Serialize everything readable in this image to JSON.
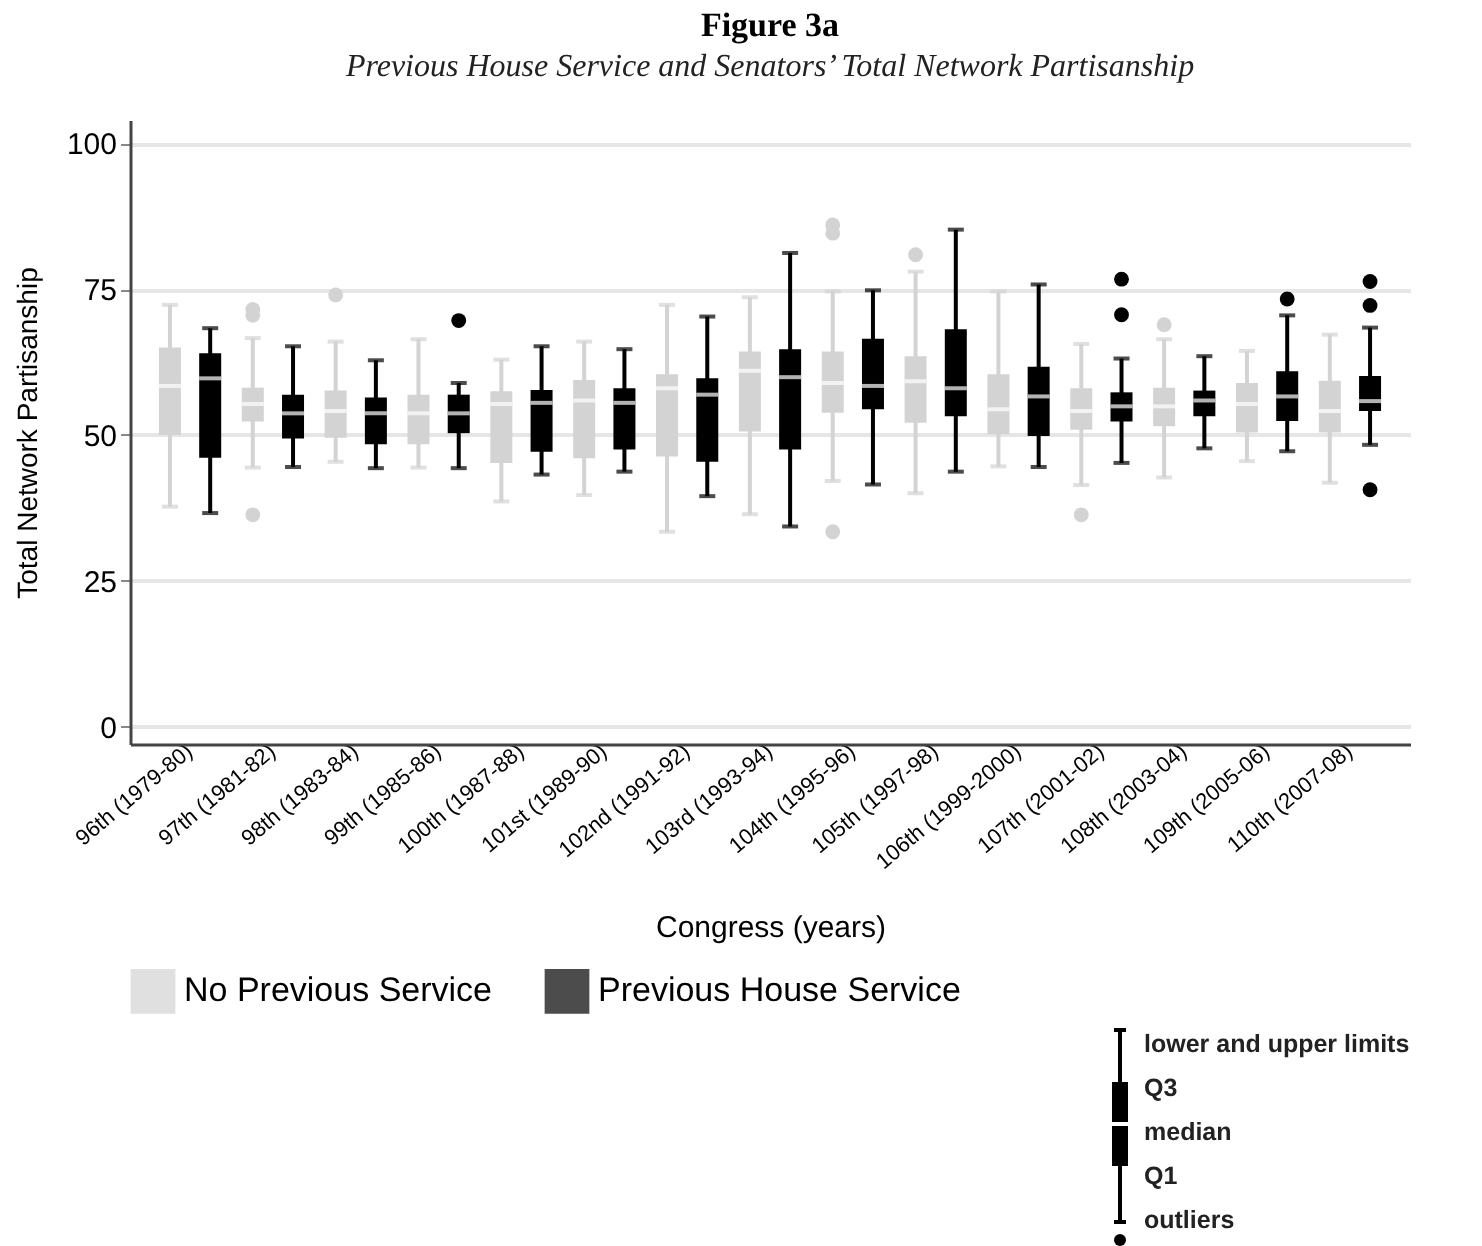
{
  "chart_data": {
    "type": "box",
    "title": "Figure 3a",
    "subtitle": "Previous House Service and Senators’ Total Network Partisanship",
    "xlabel": "Congress (years)",
    "ylabel": "Total Network Partisanship",
    "categories": [
      "96th (1979-80)",
      "97th (1981-82)",
      "98th (1983-84)",
      "99th (1985-86)",
      "100th (1987-88)",
      "101st (1989-90)",
      "102nd (1991-92)",
      "103rd (1993-94)",
      "104th (1995-96)",
      "105th (1997-98)",
      "106th (1999-2000)",
      "107th (2001-02)",
      "108th (2003-04)",
      "109th (2005-06)",
      "110th (2007-08)"
    ],
    "ylim": [
      -3,
      104
    ],
    "yticks": [
      0,
      25,
      50,
      75,
      100
    ],
    "grid": "y",
    "legend": "bottom",
    "annotations": [
      "lower and upper limits",
      "Q3",
      "median",
      "Q1",
      "outliers"
    ],
    "series": [
      {
        "name": "No Previous Service",
        "color": "#d3d3d3",
        "boxes": [
          {
            "low": 37.7,
            "q1": 50,
            "median": 58.4,
            "q3": 65,
            "high": 72.3
          },
          {
            "low": 44.4,
            "q1": 52.3,
            "median": 55.3,
            "q3": 58.1,
            "high": 66.6,
            "outliers": [
              71.5,
              70.5,
              36.3
            ]
          },
          {
            "low": 45.4,
            "q1": 49.5,
            "median": 54.1,
            "q3": 57.6,
            "high": 66,
            "outliers": [
              74
            ]
          },
          {
            "low": 44.4,
            "q1": 48.4,
            "median": 53.7,
            "q3": 56.9,
            "high": 66.4
          },
          {
            "low": 38.6,
            "q1": 45.2,
            "median": 55.3,
            "q3": 57.5,
            "high": 62.9
          },
          {
            "low": 39.7,
            "q1": 46,
            "median": 55.9,
            "q3": 59.4,
            "high": 66
          },
          {
            "low": 33.4,
            "q1": 46.3,
            "median": 58,
            "q3": 60.4,
            "high": 72.3
          },
          {
            "low": 36.4,
            "q1": 50.6,
            "median": 61,
            "q3": 64.3,
            "high": 73.6
          },
          {
            "low": 42.1,
            "q1": 53.8,
            "median": 58.9,
            "q3": 64.3,
            "high": 74.6,
            "outliers": [
              84.6,
              86,
              33.4
            ]
          },
          {
            "low": 40,
            "q1": 52.1,
            "median": 59.2,
            "q3": 63.5,
            "high": 78,
            "outliers": [
              80.9
            ]
          },
          {
            "low": 44.6,
            "q1": 50.1,
            "median": 54.4,
            "q3": 60.4,
            "high": 74.6
          },
          {
            "low": 41.4,
            "q1": 50.9,
            "median": 54.1,
            "q3": 58,
            "high": 65.6,
            "outliers": [
              36.3
            ]
          },
          {
            "low": 42.7,
            "q1": 51.5,
            "median": 54.9,
            "q3": 58.1,
            "high": 66.4,
            "outliers": [
              68.9
            ]
          },
          {
            "low": 45.5,
            "q1": 50.4,
            "median": 55.3,
            "q3": 58.9,
            "high": 64.4
          },
          {
            "low": 41.8,
            "q1": 50.4,
            "median": 54.1,
            "q3": 59.3,
            "high": 67.2
          }
        ]
      },
      {
        "name": "Previous House Service",
        "color": "#000000",
        "boxes": [
          {
            "low": 36.6,
            "q1": 46.1,
            "median": 59.7,
            "q3": 64,
            "high": 68.3
          },
          {
            "low": 44.5,
            "q1": 49.4,
            "median": 53.7,
            "q3": 56.9,
            "high": 65.2
          },
          {
            "low": 44.3,
            "q1": 48.4,
            "median": 53.7,
            "q3": 56.4,
            "high": 62.8
          },
          {
            "low": 44.3,
            "q1": 50.3,
            "median": 53.7,
            "q3": 56.9,
            "high": 58.9,
            "outliers": [
              69.6
            ]
          },
          {
            "low": 43.2,
            "q1": 47.1,
            "median": 55.5,
            "q3": 57.7,
            "high": 65.2
          },
          {
            "low": 43.7,
            "q1": 47.5,
            "median": 55.5,
            "q3": 58,
            "high": 64.7
          },
          {
            "low": 39.5,
            "q1": 45.4,
            "median": 56.9,
            "q3": 59.7,
            "high": 70.3
          },
          {
            "low": 34.3,
            "q1": 47.5,
            "median": 59.9,
            "q3": 64.7,
            "high": 81.2
          },
          {
            "low": 41.5,
            "q1": 54.4,
            "median": 58.4,
            "q3": 66.5,
            "high": 74.8
          },
          {
            "low": 43.7,
            "q1": 53.2,
            "median": 58,
            "q3": 68.1,
            "high": 85.2
          },
          {
            "low": 44.5,
            "q1": 49.8,
            "median": 56.6,
            "q3": 61.7,
            "high": 75.8
          },
          {
            "low": 45.2,
            "q1": 52.3,
            "median": 54.9,
            "q3": 57.3,
            "high": 63.1,
            "outliers": [
              76.7,
              70.6
            ]
          },
          {
            "low": 47.7,
            "q1": 53.2,
            "median": 55.9,
            "q3": 57.6,
            "high": 63.5
          },
          {
            "low": 47.2,
            "q1": 52.4,
            "median": 56.6,
            "q3": 60.9,
            "high": 70.5,
            "outliers": [
              73.3
            ]
          },
          {
            "low": 48.3,
            "q1": 54.1,
            "median": 55.8,
            "q3": 60.1,
            "high": 68.4,
            "outliers": [
              76.3,
              72.2,
              40.6
            ]
          }
        ]
      }
    ]
  }
}
